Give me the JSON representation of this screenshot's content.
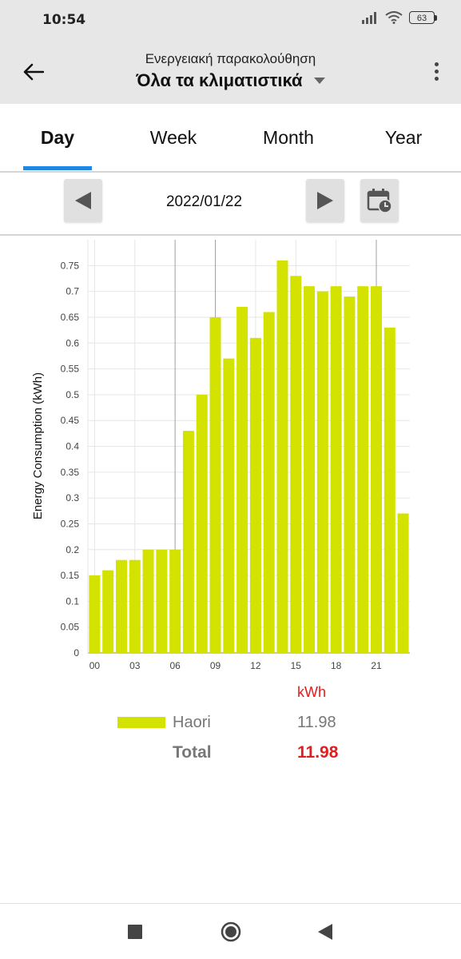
{
  "status_bar": {
    "time": "10:54",
    "battery": "63"
  },
  "header": {
    "subtitle": "Ενεργειακή παρακολούθηση",
    "title": "Όλα τα κλιματιστικά"
  },
  "tabs": [
    {
      "label": "Day",
      "active": true
    },
    {
      "label": "Week",
      "active": false
    },
    {
      "label": "Month",
      "active": false
    },
    {
      "label": "Year",
      "active": false
    }
  ],
  "date_nav": {
    "date": "2022/01/22"
  },
  "chart_data": {
    "type": "bar",
    "ylabel": "Energy Consumption (kWh)",
    "xlabel": "",
    "ylim": [
      0,
      0.8
    ],
    "yticks": [
      "0",
      "0.05",
      "0.1",
      "0.15",
      "0.2",
      "0.25",
      "0.3",
      "0.35",
      "0.4",
      "0.45",
      "0.5",
      "0.55",
      "0.6",
      "0.65",
      "0.7",
      "0.75"
    ],
    "xticks": [
      "00",
      "03",
      "06",
      "09",
      "12",
      "15",
      "18",
      "21"
    ],
    "series": [
      {
        "name": "Haori",
        "color": "#d4e200",
        "values": [
          0.15,
          0.16,
          0.18,
          0.18,
          0.2,
          0.2,
          0.2,
          0.43,
          0.5,
          0.65,
          0.57,
          0.67,
          0.61,
          0.66,
          0.76,
          0.73,
          0.71,
          0.7,
          0.71,
          0.69,
          0.71,
          0.71,
          0.63,
          0.27
        ]
      }
    ],
    "grid": true
  },
  "legend": {
    "unit": "kWh",
    "series_name": "Haori",
    "series_value": "11.98",
    "total_label": "Total",
    "total_value": "11.98",
    "accent_color": "#e01e1e"
  }
}
